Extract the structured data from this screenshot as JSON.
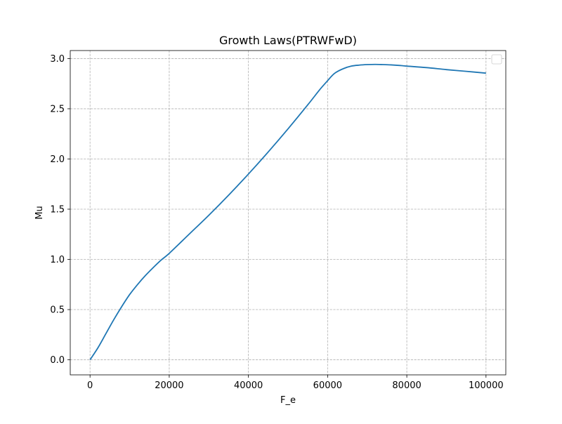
{
  "chart_data": {
    "type": "line",
    "title": "Growth Laws(PTRWFwD)",
    "xlabel": "F_e",
    "ylabel": "Mu",
    "xlim": [
      -5000,
      105000
    ],
    "ylim": [
      -0.15,
      3.08
    ],
    "x_ticks": [
      0,
      20000,
      40000,
      60000,
      80000,
      100000
    ],
    "x_tick_labels": [
      "0",
      "20000",
      "40000",
      "60000",
      "80000",
      "100000"
    ],
    "y_ticks": [
      0.0,
      0.5,
      1.0,
      1.5,
      2.0,
      2.5,
      3.0
    ],
    "y_tick_labels": [
      "0.0",
      "0.5",
      "1.0",
      "1.5",
      "2.0",
      "2.5",
      "3.0"
    ],
    "grid": true,
    "legend_position": "top-right",
    "legend_entries": [],
    "series": [
      {
        "color": "#1f77b4",
        "x": [
          0,
          2000,
          4000,
          6000,
          8000,
          10000,
          12000,
          14000,
          16000,
          18000,
          20000,
          25000,
          30000,
          35000,
          40000,
          45000,
          50000,
          55000,
          58000,
          60000,
          61000,
          62000,
          64000,
          66000,
          68000,
          70000,
          72000,
          74000,
          76000,
          78000,
          80000,
          85000,
          90000,
          95000,
          100000
        ],
        "y": [
          0.0,
          0.12,
          0.26,
          0.4,
          0.53,
          0.65,
          0.75,
          0.84,
          0.92,
          0.995,
          1.06,
          1.25,
          1.44,
          1.64,
          1.85,
          2.07,
          2.3,
          2.54,
          2.69,
          2.78,
          2.825,
          2.86,
          2.9,
          2.925,
          2.935,
          2.94,
          2.942,
          2.94,
          2.937,
          2.932,
          2.925,
          2.91,
          2.89,
          2.873,
          2.855
        ]
      }
    ]
  }
}
